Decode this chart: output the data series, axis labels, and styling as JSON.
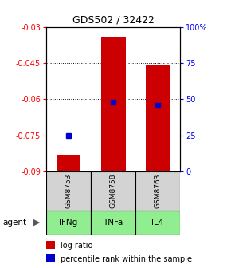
{
  "title": "GDS502 / 32422",
  "samples": [
    "GSM8753",
    "GSM8758",
    "GSM8763"
  ],
  "agents": [
    "IFNg",
    "TNFa",
    "IL4"
  ],
  "log_ratios": [
    -0.083,
    -0.034,
    -0.046
  ],
  "percentile_ranks": [
    25.0,
    48.0,
    46.0
  ],
  "ylim_left": [
    -0.09,
    -0.03
  ],
  "ylim_right": [
    0,
    100
  ],
  "yticks_left": [
    -0.09,
    -0.075,
    -0.06,
    -0.045,
    -0.03
  ],
  "ytick_labels_left": [
    "-0.09",
    "-0.075",
    "-0.06",
    "-0.045",
    "-0.03"
  ],
  "yticks_right": [
    0,
    25,
    50,
    75,
    100
  ],
  "ytick_labels_right": [
    "0",
    "25",
    "50",
    "75",
    "100%"
  ],
  "bar_color": "#cc0000",
  "dot_color": "#0000cc",
  "agent_bg_color": "#90EE90",
  "gsm_bg_color": "#d3d3d3",
  "legend_log_label": "log ratio",
  "legend_pct_label": "percentile rank within the sample"
}
